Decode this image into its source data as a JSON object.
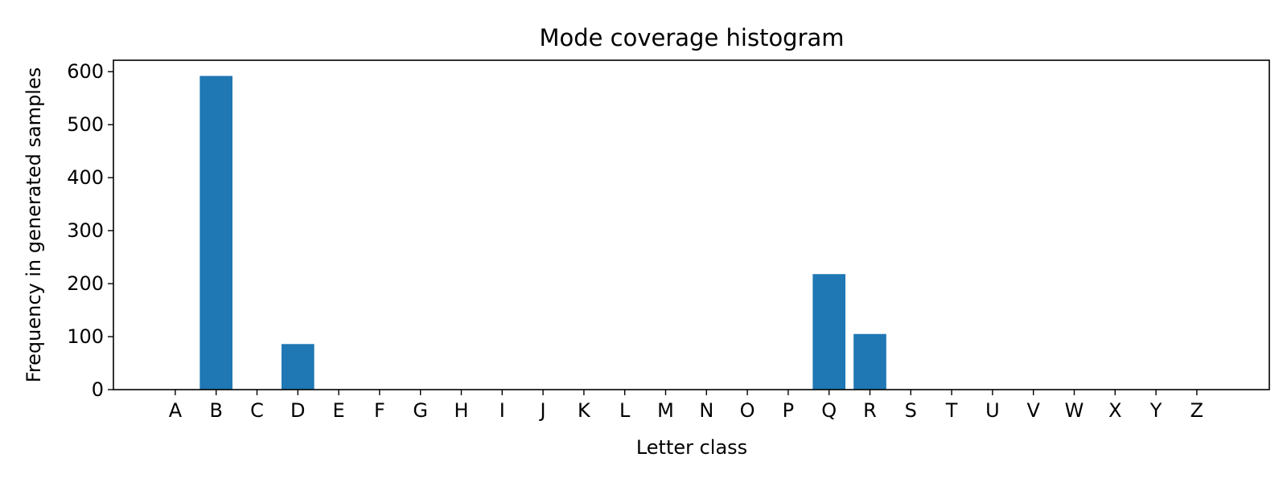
{
  "chart_data": {
    "type": "bar",
    "title": "Mode coverage histogram",
    "xlabel": "Letter class",
    "ylabel": "Frequency in generated samples",
    "categories": [
      "A",
      "B",
      "C",
      "D",
      "E",
      "F",
      "G",
      "H",
      "I",
      "J",
      "K",
      "L",
      "M",
      "N",
      "O",
      "P",
      "Q",
      "R",
      "S",
      "T",
      "U",
      "V",
      "W",
      "X",
      "Y",
      "Z"
    ],
    "values": [
      0,
      592,
      0,
      86,
      0,
      0,
      0,
      0,
      0,
      0,
      0,
      0,
      0,
      0,
      0,
      0,
      218,
      105,
      0,
      0,
      0,
      0,
      0,
      0,
      0,
      0
    ],
    "ylim": [
      0,
      621.6
    ],
    "yticks": [
      0,
      100,
      200,
      300,
      400,
      500,
      600
    ],
    "grid": false,
    "bar_color": "#1f77b4"
  }
}
